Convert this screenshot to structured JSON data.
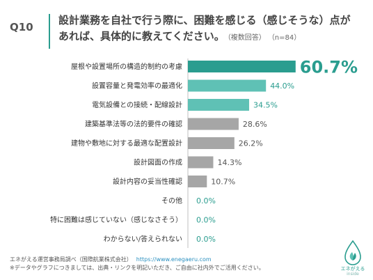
{
  "question": {
    "label": "Q10",
    "line1": "設計業務を自社で行う際に、困難を感じる（感じそうな）点が",
    "line2": "あれば、具体的に教えてください。",
    "note": "（複数回答）",
    "n": "（n=84）"
  },
  "chart_data": {
    "type": "bar",
    "orientation": "horizontal",
    "categories": [
      "屋根や設置場所の構造的制約の考慮",
      "設置容量と発電効率の最適化",
      "電気設備との接続・配線設計",
      "建築基準法等の法的要件の確認",
      "建物や敷地に対する最適な配置設計",
      "設計図面の作成",
      "設計内容の妥当性確認",
      "その他",
      "特に困難は感じていない（感じなさそう）",
      "わからない/答えられない"
    ],
    "values": [
      60.7,
      44.0,
      34.5,
      28.6,
      26.2,
      14.3,
      10.7,
      0.0,
      0.0,
      0.0
    ],
    "value_labels": [
      "60.7%",
      "44.0%",
      "34.5%",
      "28.6%",
      "26.2%",
      "14.3%",
      "10.7%",
      "0.0%",
      "0.0%",
      "0.0%"
    ],
    "xlim": [
      0,
      100
    ],
    "grid": false,
    "colors": {
      "highlight": "#2a9d8f",
      "secondary": "#5fc1b5",
      "other": "#a6a6a6",
      "axis": "#bfbfbf",
      "label_teal": "#2a9d8f",
      "label_gray": "#555555"
    }
  },
  "footer": {
    "source": "エネがえる運営事務局調べ（国際航業株式会社）",
    "url": "https://www.enegaeru.com",
    "notice": "※データやグラフにつきましては、出典・リンクを明記いただき、ご自由に社内外でご活用ください。"
  },
  "logo": {
    "name": "エネがえる",
    "sub": "inside",
    "icon": "droplet-leaf-icon"
  }
}
